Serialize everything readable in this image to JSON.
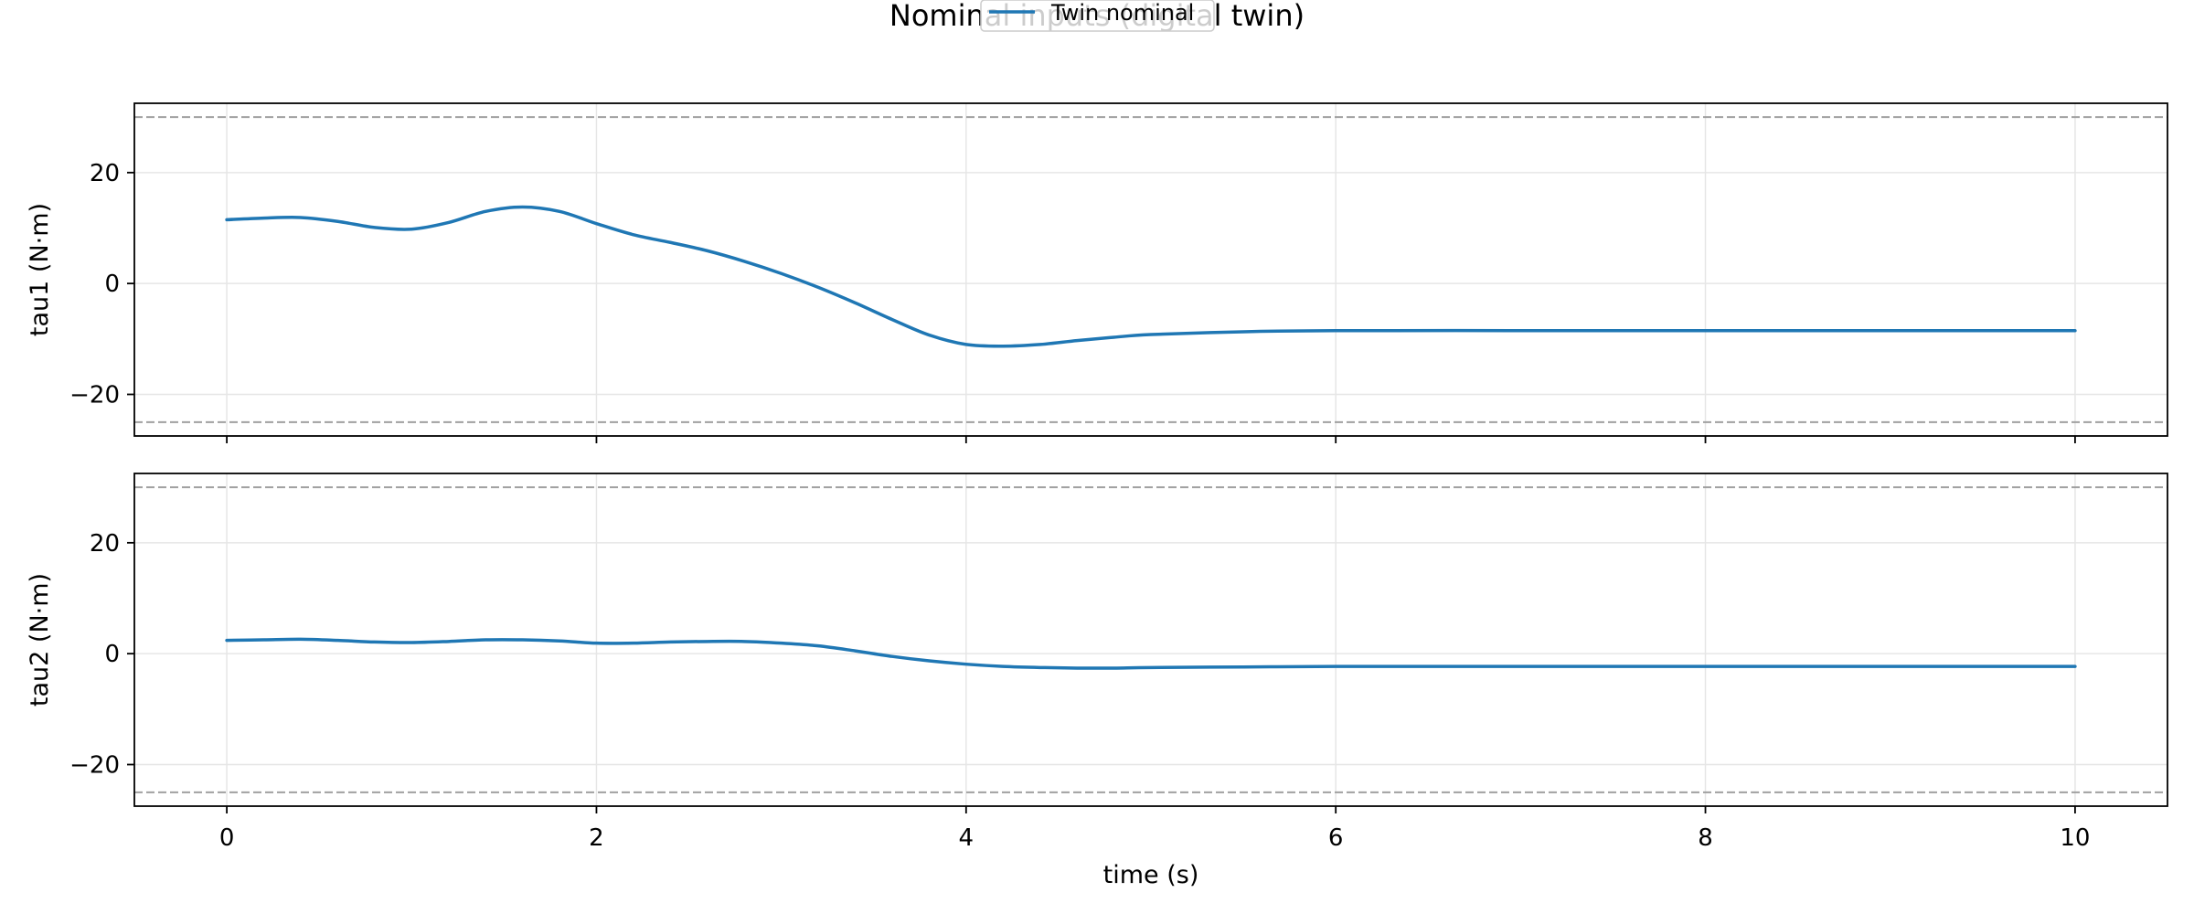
{
  "figure": {
    "title": "Nominal inputs (digital twin)"
  },
  "legend": {
    "entries": [
      {
        "label": "Twin nominal",
        "color": "#1f77b4"
      }
    ]
  },
  "colors": {
    "series": "#1f77b4",
    "limit_line": "#a0a0a0",
    "grid": "#e6e6e6"
  },
  "chart_data": [
    {
      "type": "line",
      "ylabel": "tau1 (N·m)",
      "xlabel": "",
      "xlim": [
        -0.5,
        10.5
      ],
      "ylim": [
        -27.5,
        32.5
      ],
      "xticks": [
        0,
        2,
        4,
        6,
        8,
        10
      ],
      "yticks": [
        -20,
        0,
        20
      ],
      "grid": true,
      "limits": [
        30,
        -25
      ],
      "series": [
        {
          "name": "Twin nominal",
          "x": [
            0,
            0.2,
            0.4,
            0.6,
            0.8,
            1.0,
            1.2,
            1.4,
            1.6,
            1.8,
            2.0,
            2.2,
            2.4,
            2.6,
            2.8,
            3.0,
            3.2,
            3.4,
            3.6,
            3.8,
            4.0,
            4.2,
            4.4,
            4.6,
            4.8,
            5.0,
            5.5,
            6.0,
            7.0,
            8.0,
            9.0,
            10.0
          ],
          "y": [
            11.5,
            11.8,
            11.9,
            11.2,
            10.1,
            9.8,
            11.0,
            13.0,
            13.8,
            13.0,
            10.8,
            8.8,
            7.4,
            5.9,
            4.0,
            1.8,
            -0.7,
            -3.5,
            -6.5,
            -9.3,
            -11.0,
            -11.3,
            -11.0,
            -10.3,
            -9.7,
            -9.2,
            -8.7,
            -8.5,
            -8.5,
            -8.5,
            -8.5,
            -8.5
          ]
        }
      ]
    },
    {
      "type": "line",
      "ylabel": "tau2 (N·m)",
      "xlabel": "time (s)",
      "xlim": [
        -0.5,
        10.5
      ],
      "ylim": [
        -27.5,
        32.5
      ],
      "xticks": [
        0,
        2,
        4,
        6,
        8,
        10
      ],
      "yticks": [
        -20,
        0,
        20
      ],
      "grid": true,
      "limits": [
        30,
        -25
      ],
      "series": [
        {
          "name": "Twin nominal",
          "x": [
            0,
            0.2,
            0.4,
            0.6,
            0.8,
            1.0,
            1.2,
            1.4,
            1.6,
            1.8,
            2.0,
            2.2,
            2.4,
            2.6,
            2.8,
            3.0,
            3.2,
            3.4,
            3.6,
            3.8,
            4.0,
            4.2,
            4.4,
            4.6,
            4.8,
            5.0,
            5.5,
            6.0,
            7.0,
            8.0,
            9.0,
            10.0
          ],
          "y": [
            2.4,
            2.5,
            2.6,
            2.4,
            2.1,
            2.0,
            2.2,
            2.5,
            2.5,
            2.3,
            1.9,
            1.9,
            2.1,
            2.2,
            2.2,
            1.9,
            1.4,
            0.5,
            -0.5,
            -1.3,
            -1.9,
            -2.3,
            -2.5,
            -2.6,
            -2.6,
            -2.5,
            -2.4,
            -2.3,
            -2.3,
            -2.3,
            -2.3,
            -2.3
          ]
        }
      ]
    }
  ]
}
